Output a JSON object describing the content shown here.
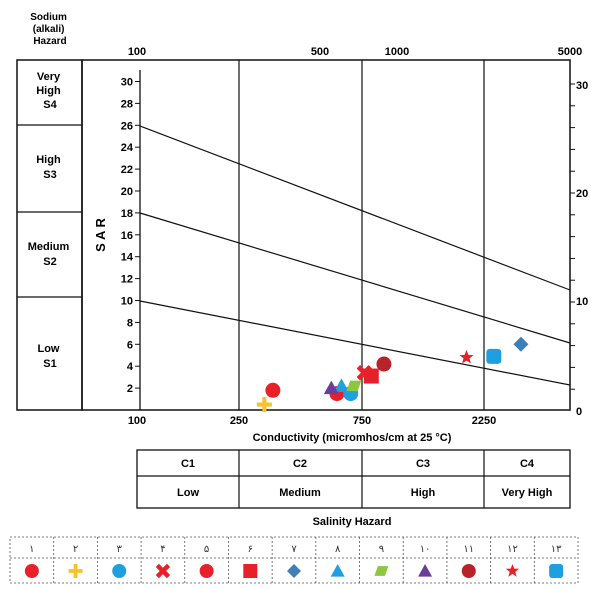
{
  "sodium_panel": {
    "title_lines": [
      "Sodium",
      "(alkali)",
      "Hazard"
    ],
    "zones": [
      {
        "lines": [
          "Very",
          "High",
          "S4"
        ]
      },
      {
        "lines": [
          "High",
          "S3"
        ]
      },
      {
        "lines": [
          "Medium",
          "S2"
        ]
      },
      {
        "lines": [
          "Low",
          "S1"
        ]
      }
    ]
  },
  "top_axis_labels": [
    "100",
    "500",
    "1000",
    "5000"
  ],
  "bottom_axis_labels": [
    "100",
    "250",
    "750",
    "2250"
  ],
  "left_axis_ticks": [
    "2",
    "4",
    "6",
    "8",
    "10",
    "12",
    "14",
    "16",
    "18",
    "20",
    "22",
    "24",
    "26",
    "28",
    "30"
  ],
  "right_axis_labels": [
    "0",
    "10",
    "20",
    "30"
  ],
  "ylabel": "S A R",
  "xlabel": "Conductivity (micromhos/cm at 25 °C)",
  "salinity_table": {
    "classes": [
      "C1",
      "C2",
      "C3",
      "C4"
    ],
    "names": [
      "Low",
      "Medium",
      "High",
      "Very High"
    ],
    "title": "Salinity Hazard"
  },
  "legend": {
    "numbers": [
      "١",
      "٢",
      "٣",
      "۴",
      "۵",
      "۶",
      "٧",
      "٨",
      "٩",
      "١٠",
      "١١",
      "١٢",
      "١٣"
    ],
    "symbols": [
      {
        "shape": "circle",
        "color": "#e8202a"
      },
      {
        "shape": "plus",
        "color": "#f7c22e"
      },
      {
        "shape": "circle",
        "color": "#1ea0e0"
      },
      {
        "shape": "cross",
        "color": "#e8202a"
      },
      {
        "shape": "circle",
        "color": "#e8202a"
      },
      {
        "shape": "square",
        "color": "#e8202a"
      },
      {
        "shape": "diamond",
        "color": "#3f7fb8"
      },
      {
        "shape": "triangle",
        "color": "#1ea0e0"
      },
      {
        "shape": "parallelogram",
        "color": "#8dc63f"
      },
      {
        "shape": "triangle",
        "color": "#6a3d9a"
      },
      {
        "shape": "circle",
        "color": "#b8232a"
      },
      {
        "shape": "star",
        "color": "#e8202a"
      },
      {
        "shape": "roundsquare",
        "color": "#1ea0e0"
      }
    ]
  },
  "chart_data": {
    "type": "scatter",
    "x_scale": "log",
    "xlim": [
      100,
      5000
    ],
    "ylim": [
      0,
      32
    ],
    "boundary_lines_sar": [
      {
        "x": [
          100,
          5000
        ],
        "y": [
          10,
          2.5
        ]
      },
      {
        "x": [
          100,
          5000
        ],
        "y": [
          18,
          6.5
        ]
      },
      {
        "x": [
          100,
          5000
        ],
        "y": [
          26,
          11
        ]
      }
    ],
    "salinity_class_bounds_ec": [
      250,
      750,
      2250
    ],
    "points": [
      {
        "sample": "١",
        "ec": 600,
        "sar": 1.5
      },
      {
        "sample": "٢",
        "ec": 310,
        "sar": 0.5
      },
      {
        "sample": "٣",
        "ec": 680,
        "sar": 1.5
      },
      {
        "sample": "۴",
        "ec": 770,
        "sar": 3.4
      },
      {
        "sample": "۵",
        "ec": 335,
        "sar": 1.8
      },
      {
        "sample": "۶",
        "ec": 820,
        "sar": 3.1
      },
      {
        "sample": "٧",
        "ec": 3200,
        "sar": 6.0
      },
      {
        "sample": "٨",
        "ec": 625,
        "sar": 2.2
      },
      {
        "sample": "٩",
        "ec": 700,
        "sar": 2.2
      },
      {
        "sample": "١٠",
        "ec": 570,
        "sar": 2.0
      },
      {
        "sample": "١١",
        "ec": 920,
        "sar": 4.2
      },
      {
        "sample": "١٢",
        "ec": 1950,
        "sar": 4.8
      },
      {
        "sample": "١٣",
        "ec": 2500,
        "sar": 4.9
      }
    ]
  }
}
